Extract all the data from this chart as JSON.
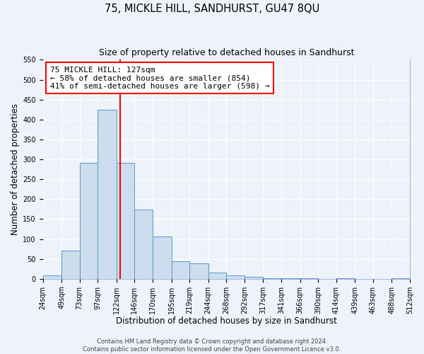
{
  "title": "75, MICKLE HILL, SANDHURST, GU47 8QU",
  "subtitle": "Size of property relative to detached houses in Sandhurst",
  "xlabel": "Distribution of detached houses by size in Sandhurst",
  "ylabel": "Number of detached properties",
  "bin_edges": [
    24,
    49,
    73,
    97,
    122,
    146,
    170,
    195,
    219,
    244,
    268,
    292,
    317,
    341,
    366,
    390,
    414,
    439,
    463,
    488,
    512
  ],
  "bin_heights": [
    8,
    70,
    292,
    425,
    292,
    173,
    106,
    44,
    38,
    16,
    8,
    5,
    2,
    1,
    1,
    0,
    1,
    0,
    0,
    1
  ],
  "bar_color": "#ccdded",
  "bar_edge_color": "#5599cc",
  "bar_linewidth": 0.7,
  "vline_x": 127,
  "vline_color": "red",
  "vline_linewidth": 1.5,
  "annotation_title": "75 MICKLE HILL: 127sqm",
  "annotation_line1": "← 58% of detached houses are smaller (854)",
  "annotation_line2": "41% of semi-detached houses are larger (598) →",
  "annotation_box_facecolor": "white",
  "annotation_box_edgecolor": "red",
  "ylim": [
    0,
    550
  ],
  "yticks": [
    0,
    50,
    100,
    150,
    200,
    250,
    300,
    350,
    400,
    450,
    500,
    550
  ],
  "tick_labels": [
    "24sqm",
    "49sqm",
    "73sqm",
    "97sqm",
    "122sqm",
    "146sqm",
    "170sqm",
    "195sqm",
    "219sqm",
    "244sqm",
    "268sqm",
    "292sqm",
    "317sqm",
    "341sqm",
    "366sqm",
    "390sqm",
    "414sqm",
    "439sqm",
    "463sqm",
    "488sqm",
    "512sqm"
  ],
  "footer_line1": "Contains HM Land Registry data © Crown copyright and database right 2024.",
  "footer_line2": "Contains public sector information licensed under the Open Government Licence v3.0.",
  "bg_color": "#eef2fb",
  "grid_color": "white",
  "title_fontsize": 10.5,
  "subtitle_fontsize": 9,
  "axis_label_fontsize": 8.5,
  "tick_fontsize": 7,
  "footer_fontsize": 6,
  "annotation_fontsize": 8
}
